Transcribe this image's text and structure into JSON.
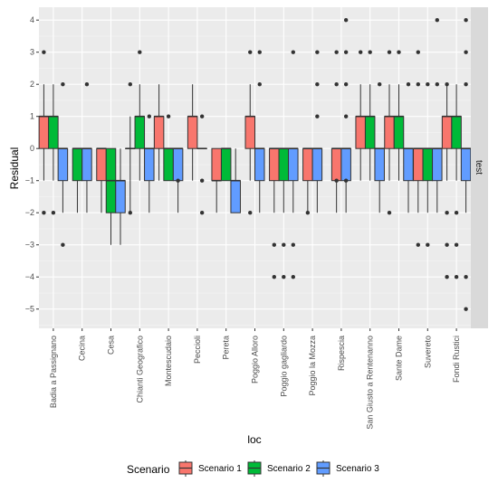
{
  "chart_data": {
    "type": "boxplot",
    "xlabel": "loc",
    "ylabel": "Residual",
    "facet_label": "test",
    "ylim": [
      -5.6,
      4.4
    ],
    "yticks": [
      -5,
      -4,
      -3,
      -2,
      -1,
      0,
      1,
      2,
      3,
      4
    ],
    "grid": true,
    "legend": {
      "title": "Scenario",
      "position": "bottom"
    },
    "categories": [
      "Badia a Passignano",
      "Cecina",
      "Cesa",
      "Chianti Geografico",
      "Montescudaio",
      "Peccioli",
      "Pereta",
      "Poggio Alloro",
      "Poggio gagliardo",
      "Poggio la Mozza",
      "Rispescia",
      "San Giusto a Rentenanno",
      "Sante Dame",
      "Suvereto",
      "Fondi Rustici"
    ],
    "series": [
      {
        "name": "Scenario 1",
        "color": "#F8766D",
        "boxes": [
          {
            "q1": 0,
            "median": 1,
            "q3": 1,
            "lower": -1,
            "upper": 2,
            "outliers": [
              3,
              -2
            ]
          },
          null,
          {
            "q1": -1,
            "median": 0,
            "q3": 0,
            "lower": -2,
            "upper": 0,
            "outliers": []
          },
          {
            "q1": 0,
            "median": 0,
            "q3": 0,
            "lower": -2,
            "upper": 1,
            "outliers": [
              2,
              -2
            ]
          },
          {
            "q1": 0,
            "median": 1,
            "q3": 1,
            "lower": -1,
            "upper": 2,
            "outliers": []
          },
          {
            "q1": 0,
            "median": 1,
            "q3": 1,
            "lower": -1,
            "upper": 2,
            "outliers": []
          },
          {
            "q1": -1,
            "median": -1,
            "q3": 0,
            "lower": -2,
            "upper": 0,
            "outliers": []
          },
          {
            "q1": 0,
            "median": 1,
            "q3": 1,
            "lower": -1,
            "upper": 2,
            "outliers": [
              3,
              -2
            ]
          },
          {
            "q1": -1,
            "median": 0,
            "q3": 0,
            "lower": -2,
            "upper": 0,
            "outliers": [
              -3,
              -4
            ]
          },
          {
            "q1": -1,
            "median": 0,
            "q3": 0,
            "lower": -2,
            "upper": 0,
            "outliers": [
              -2
            ]
          },
          {
            "q1": -1,
            "median": 0,
            "q3": 0,
            "lower": -2,
            "upper": 0,
            "outliers": [
              3,
              2,
              -1
            ]
          },
          {
            "q1": 0,
            "median": 1,
            "q3": 1,
            "lower": -1,
            "upper": 2,
            "outliers": [
              3
            ]
          },
          {
            "q1": 0,
            "median": 1,
            "q3": 1,
            "lower": -1,
            "upper": 2,
            "outliers": [
              3,
              -2
            ]
          },
          {
            "q1": -1,
            "median": 0,
            "q3": 0,
            "lower": -2,
            "upper": 0,
            "outliers": [
              3,
              2,
              -3
            ]
          },
          {
            "q1": 0,
            "median": 1,
            "q3": 1,
            "lower": -1,
            "upper": 2,
            "outliers": [
              2,
              -2,
              -3,
              -4
            ]
          }
        ]
      },
      {
        "name": "Scenario 2",
        "color": "#00BA38",
        "boxes": [
          {
            "q1": 0,
            "median": 1,
            "q3": 1,
            "lower": -1,
            "upper": 2,
            "outliers": [
              -2
            ]
          },
          {
            "q1": -1,
            "median": 0,
            "q3": 0,
            "lower": -2,
            "upper": 0,
            "outliers": []
          },
          {
            "q1": -2,
            "median": -1,
            "q3": 0,
            "lower": -3,
            "upper": 0,
            "outliers": []
          },
          {
            "q1": 0,
            "median": 1,
            "q3": 1,
            "lower": -1,
            "upper": 2,
            "outliers": [
              3
            ]
          },
          {
            "q1": -1,
            "median": 0,
            "q3": 0,
            "lower": -1,
            "upper": 0,
            "outliers": [
              1
            ]
          },
          null,
          {
            "q1": -1,
            "median": 0,
            "q3": 0,
            "lower": -1,
            "upper": 0,
            "outliers": []
          },
          null,
          {
            "q1": -1,
            "median": 0,
            "q3": 0,
            "lower": -2,
            "upper": 0,
            "outliers": [
              -3,
              -4
            ]
          },
          null,
          null,
          {
            "q1": 0,
            "median": 1,
            "q3": 1,
            "lower": -1,
            "upper": 2,
            "outliers": [
              3
            ]
          },
          {
            "q1": 0,
            "median": 1,
            "q3": 1,
            "lower": -1,
            "upper": 2,
            "outliers": [
              3
            ]
          },
          {
            "q1": -1,
            "median": 0,
            "q3": 0,
            "lower": -2,
            "upper": 0,
            "outliers": [
              2,
              -3
            ]
          },
          {
            "q1": 0,
            "median": 1,
            "q3": 1,
            "lower": -1,
            "upper": 2,
            "outliers": [
              -2,
              -3,
              -4
            ]
          }
        ]
      },
      {
        "name": "Scenario 3",
        "color": "#619CFF",
        "boxes": [
          {
            "q1": -1,
            "median": 0,
            "q3": 0,
            "lower": -2,
            "upper": 0,
            "outliers": [
              2,
              -3
            ]
          },
          {
            "q1": -1,
            "median": 0,
            "q3": 0,
            "lower": -2,
            "upper": 0,
            "outliers": [
              2
            ]
          },
          {
            "q1": -2,
            "median": -1,
            "q3": -1,
            "lower": -3,
            "upper": 0,
            "outliers": []
          },
          {
            "q1": -1,
            "median": 0,
            "q3": 0,
            "lower": -2,
            "upper": 0,
            "outliers": [
              1
            ]
          },
          {
            "q1": -1,
            "median": 0,
            "q3": 0,
            "lower": -2,
            "upper": 0,
            "outliers": [
              -1
            ]
          },
          {
            "q1": 0,
            "median": 0,
            "q3": 0,
            "lower": 0,
            "upper": 0,
            "outliers": [
              1,
              -1,
              -2
            ]
          },
          {
            "q1": -2,
            "median": -1,
            "q3": -1,
            "lower": -2,
            "upper": 0,
            "outliers": []
          },
          {
            "q1": -1,
            "median": 0,
            "q3": 0,
            "lower": -2,
            "upper": 0,
            "outliers": [
              3,
              2
            ]
          },
          {
            "q1": -1,
            "median": 0,
            "q3": 0,
            "lower": -2,
            "upper": 0,
            "outliers": [
              3,
              -3,
              -4
            ]
          },
          {
            "q1": -1,
            "median": 0,
            "q3": 0,
            "lower": -2,
            "upper": 0,
            "outliers": [
              3,
              2,
              1
            ]
          },
          {
            "q1": -1,
            "median": 0,
            "q3": 0,
            "lower": -2,
            "upper": 0,
            "outliers": [
              4,
              3,
              2,
              1,
              -1
            ]
          },
          {
            "q1": -1,
            "median": 0,
            "q3": 0,
            "lower": -2,
            "upper": 0,
            "outliers": [
              2
            ]
          },
          {
            "q1": -1,
            "median": 0,
            "q3": 0,
            "lower": -2,
            "upper": 0,
            "outliers": [
              2
            ]
          },
          {
            "q1": -1,
            "median": 0,
            "q3": 0,
            "lower": -2,
            "upper": 0,
            "outliers": [
              4,
              2
            ]
          },
          {
            "q1": -1,
            "median": 0,
            "q3": 0,
            "lower": -2,
            "upper": 0,
            "outliers": [
              4,
              3,
              2,
              -4,
              -5
            ]
          }
        ]
      }
    ]
  }
}
